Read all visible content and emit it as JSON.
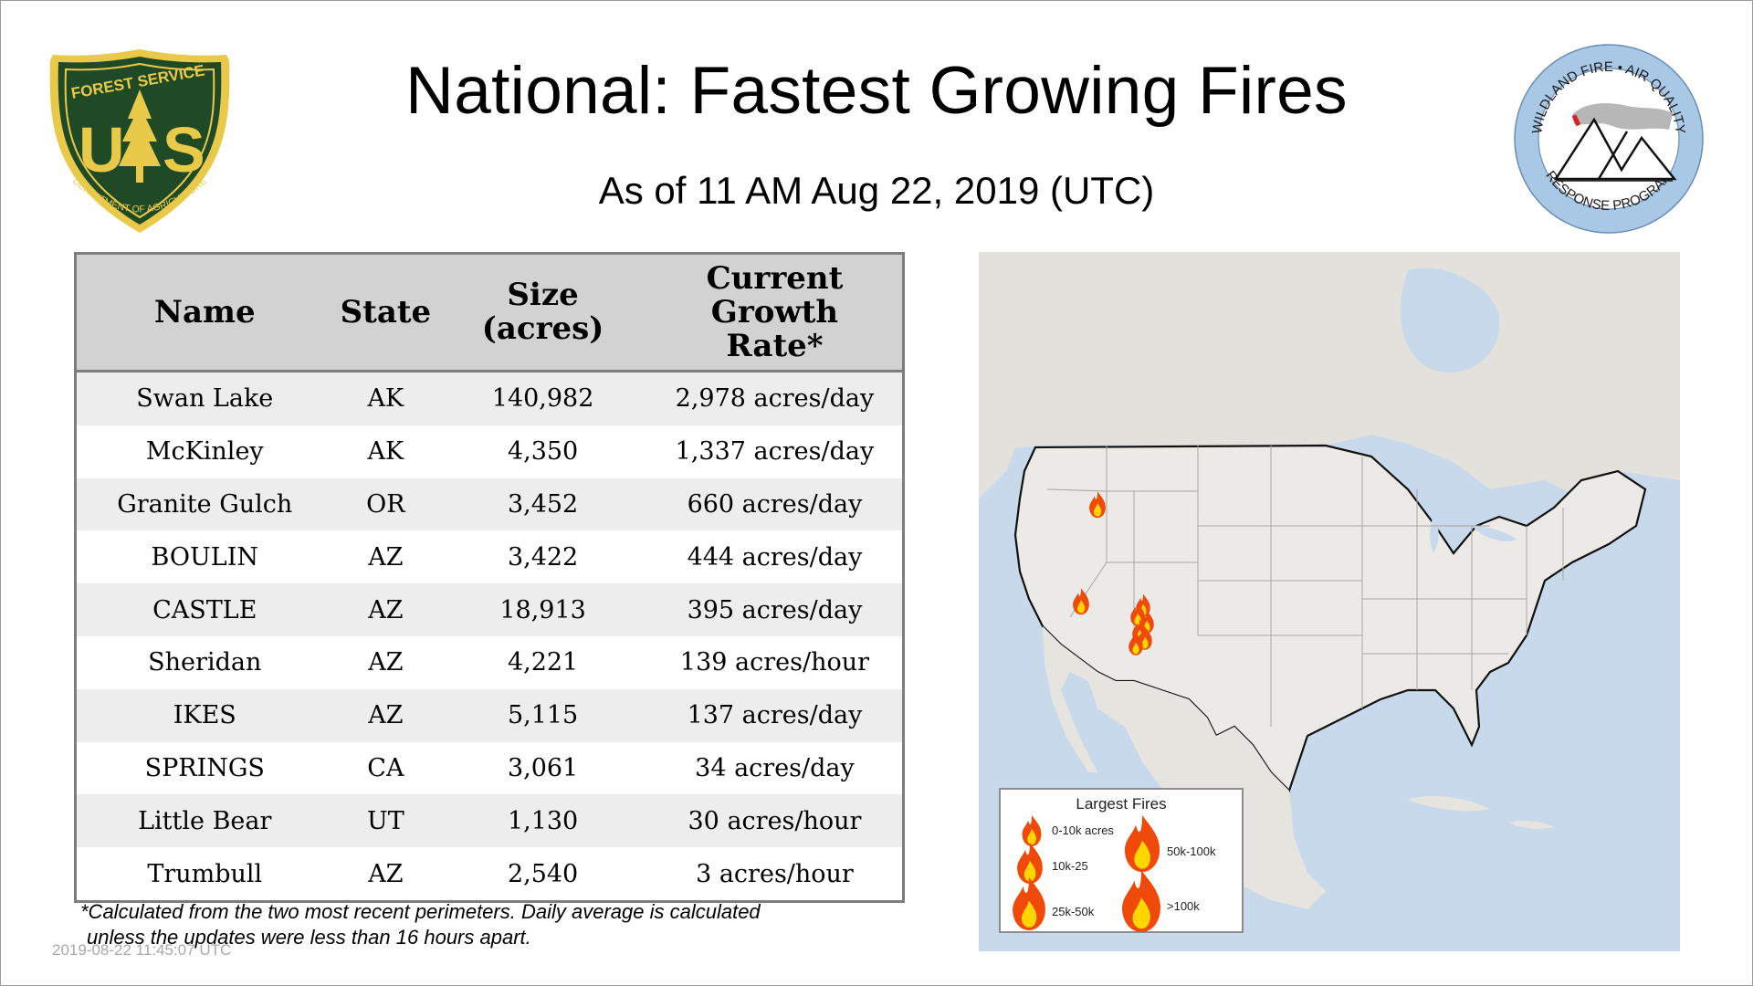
{
  "title": "National: Fastest Growing Fires",
  "subtitle": "As of 11 AM Aug 22, 2019 (UTC)",
  "logo_left": {
    "icon": "forest-service-shield-icon",
    "top_text": "FOREST SERVICE",
    "mid_text": "U S",
    "bottom_text": "DEPARTMENT OF AGRICULTURE",
    "colors": {
      "shield": "#1f4a25",
      "gold": "#e8c94a"
    }
  },
  "logo_right": {
    "icon": "wildland-fire-air-quality-seal-icon",
    "top_text": "WILDLAND FIRE • AIR QUALITY",
    "bottom_text": "RESPONSE PROGRAM",
    "colors": {
      "ring": "#a9c8e6"
    }
  },
  "table": {
    "headers": [
      "Name",
      "State",
      "Size (acres)",
      "Current Growth Rate*"
    ],
    "rows": [
      {
        "name": "Swan Lake",
        "state": "AK",
        "size": "140,982",
        "rate": "2,978 acres/day"
      },
      {
        "name": "McKinley",
        "state": "AK",
        "size": "4,350",
        "rate": "1,337 acres/day"
      },
      {
        "name": "Granite Gulch",
        "state": "OR",
        "size": "3,452",
        "rate": "660 acres/day"
      },
      {
        "name": "BOULIN",
        "state": "AZ",
        "size": "3,422",
        "rate": "444 acres/day"
      },
      {
        "name": "CASTLE",
        "state": "AZ",
        "size": "18,913",
        "rate": "395 acres/day"
      },
      {
        "name": "Sheridan",
        "state": "AZ",
        "size": "4,221",
        "rate": "139 acres/hour"
      },
      {
        "name": "IKES",
        "state": "AZ",
        "size": "5,115",
        "rate": "137 acres/day"
      },
      {
        "name": "SPRINGS",
        "state": "CA",
        "size": "3,061",
        "rate": "34 acres/day"
      },
      {
        "name": "Little Bear",
        "state": "UT",
        "size": "1,130",
        "rate": "30 acres/hour"
      },
      {
        "name": "Trumbull",
        "state": "AZ",
        "size": "2,540",
        "rate": "3 acres/hour"
      }
    ]
  },
  "footnote": {
    "line1": "*Calculated from the two most recent perimeters. Daily average is calculated",
    "line2": "unless the updates were less than 16 hours apart."
  },
  "timestamp": "2019-08-22 11:45:07 UTC",
  "map": {
    "icon": "us-fire-map",
    "colors": {
      "water": "#c7d9ea",
      "land": "#eceae6",
      "border": "#111111",
      "flame_outer": "#f04a0a",
      "flame_inner": "#ffd600"
    },
    "legend": {
      "title": "Largest Fires",
      "items": [
        "0-10k acres",
        "10k-25",
        "25k-50k",
        "50k-100k",
        ">100k"
      ]
    }
  }
}
